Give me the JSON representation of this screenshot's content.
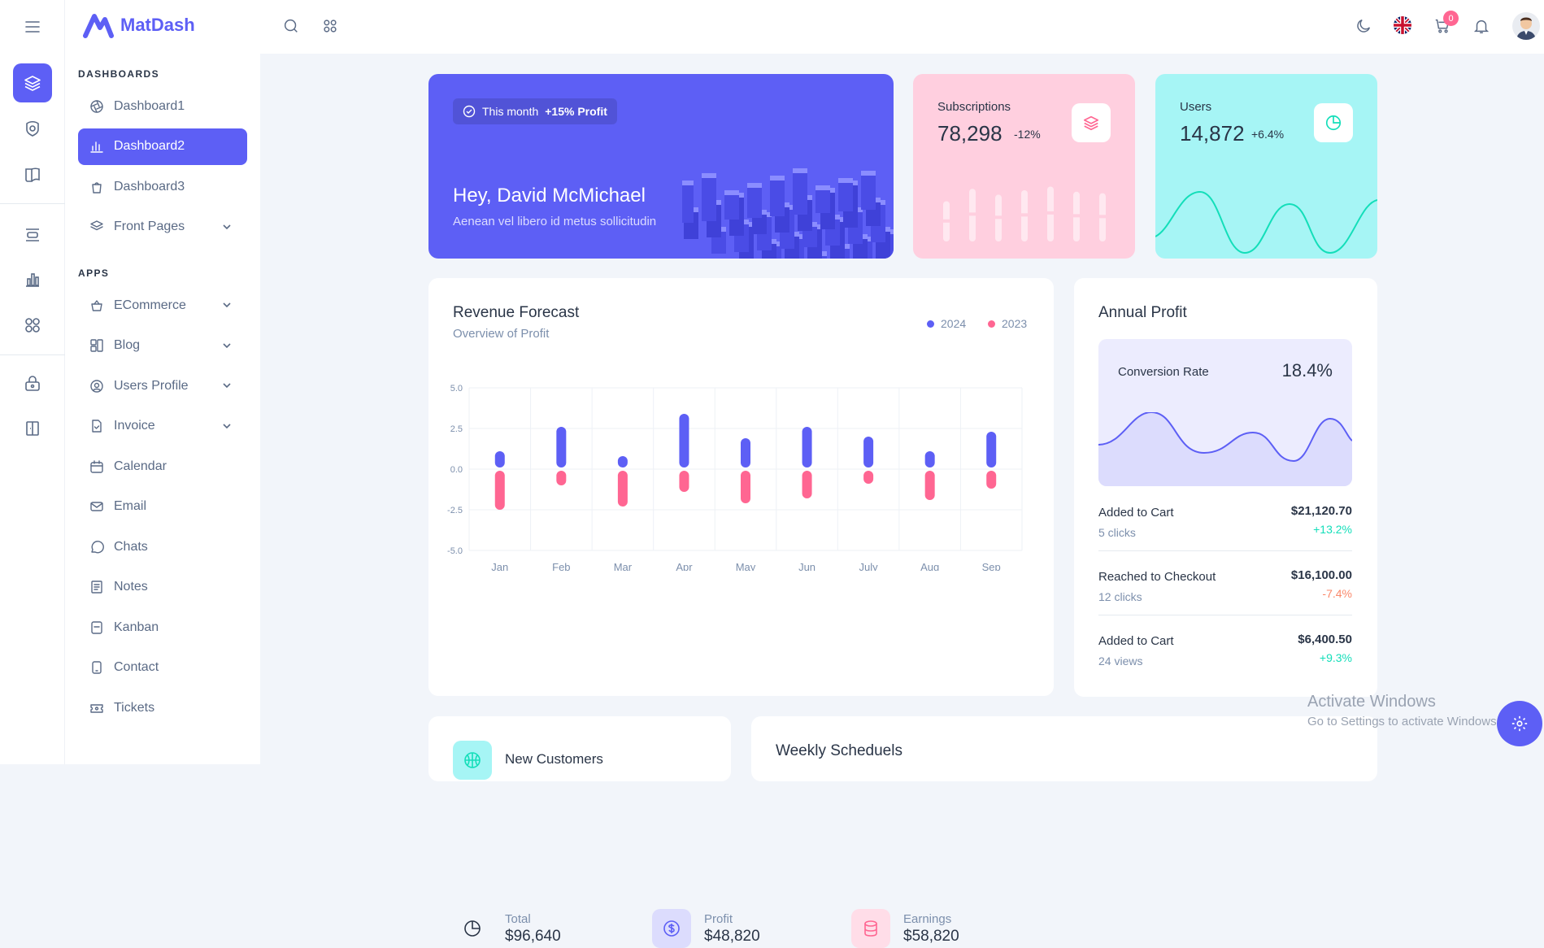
{
  "app": {
    "name": "MatDash"
  },
  "sidebar": {
    "dashboards_heading": "DASHBOARDS",
    "apps_heading": "APPS",
    "dashboards": [
      {
        "label": "Dashboard1",
        "icon": "aperture-icon"
      },
      {
        "label": "Dashboard2",
        "icon": "bar-chart-icon",
        "active": true
      },
      {
        "label": "Dashboard3",
        "icon": "shopping-bag-icon"
      },
      {
        "label": "Front Pages",
        "icon": "layers-icon",
        "expandable": true
      }
    ],
    "apps": [
      {
        "label": "ECommerce",
        "icon": "basket-icon",
        "expandable": true
      },
      {
        "label": "Blog",
        "icon": "layout-icon",
        "expandable": true
      },
      {
        "label": "Users Profile",
        "icon": "user-circle-icon",
        "expandable": true
      },
      {
        "label": "Invoice",
        "icon": "file-check-icon",
        "expandable": true
      },
      {
        "label": "Calendar",
        "icon": "calendar-icon"
      },
      {
        "label": "Email",
        "icon": "mail-icon"
      },
      {
        "label": "Chats",
        "icon": "message-icon"
      },
      {
        "label": "Notes",
        "icon": "notes-icon"
      },
      {
        "label": "Kanban",
        "icon": "checklist-icon"
      },
      {
        "label": "Contact",
        "icon": "phone-icon"
      },
      {
        "label": "Tickets",
        "icon": "ticket-icon"
      }
    ]
  },
  "topbar": {
    "cart_count": "0"
  },
  "hero": {
    "pill_label": "This month",
    "pill_value": "+15% Profit",
    "greeting": "Hey, David McMichael",
    "subtitle": "Aenean vel libero id metus sollicitudin"
  },
  "subscriptions": {
    "label": "Subscriptions",
    "value": "78,298",
    "change": "-12%",
    "bar_levels": [
      0.55,
      0.72,
      0.64,
      0.7,
      0.75,
      0.68,
      0.66
    ]
  },
  "users": {
    "label": "Users",
    "value": "14,872",
    "change": "+6.4%"
  },
  "revenue": {
    "title": "Revenue Forecast",
    "subtitle": "Overview of Profit",
    "legend": [
      {
        "name": "2024",
        "color": "#5d5ff5"
      },
      {
        "name": "2023",
        "color": "#ff6692"
      }
    ],
    "summary": [
      {
        "label": "Total",
        "value": "$96,640",
        "icon": "pie-chart-icon"
      },
      {
        "label": "Profit",
        "value": "$48,820",
        "icon": "dollar-circle-icon"
      },
      {
        "label": "Earnings",
        "value": "$58,820",
        "icon": "database-icon"
      }
    ]
  },
  "chart_data": {
    "type": "bar",
    "categories": [
      "Jan",
      "Feb",
      "Mar",
      "Apr",
      "May",
      "Jun",
      "July",
      "Aug",
      "Sep"
    ],
    "series": [
      {
        "name": "2024",
        "values": [
          1.1,
          2.6,
          0.8,
          3.4,
          1.9,
          2.6,
          2.0,
          1.1,
          2.3
        ]
      },
      {
        "name": "2023",
        "values": [
          -2.5,
          -1.0,
          -2.3,
          -1.4,
          -2.1,
          -1.8,
          -0.9,
          -1.9,
          -1.2
        ]
      }
    ],
    "yticks": [
      "5.0",
      "2.5",
      "0.0",
      "-2.5",
      "-5.0"
    ],
    "ylim": [
      -5,
      5
    ],
    "grid": true,
    "legend": "top-right"
  },
  "annual": {
    "title": "Annual Profit",
    "conversion_label": "Conversion Rate",
    "conversion_value": "18.4%",
    "rows": [
      {
        "label": "Added to Cart",
        "sub": "5 clicks",
        "amount": "$21,120.70",
        "change": "+13.2%",
        "positive": true
      },
      {
        "label": "Reached to Checkout",
        "sub": "12 clicks",
        "amount": "$16,100.00",
        "change": "-7.4%",
        "positive": false
      },
      {
        "label": "Added to Cart",
        "sub": "24 views",
        "amount": "$6,400.50",
        "change": "+9.3%",
        "positive": true
      }
    ]
  },
  "bottom": {
    "new_customers": "New Customers",
    "weekly": "Weekly Scheduels"
  },
  "watermark": {
    "line1": "Activate Windows",
    "line2": "Go to Settings to activate Windows."
  },
  "colors": {
    "primary": "#5d5ff5",
    "secondary": "#ff6692",
    "success": "#13deb9",
    "danger": "#fa896b",
    "pink_bg": "#ffcfdf",
    "cyan_bg": "#a6f5f5"
  }
}
